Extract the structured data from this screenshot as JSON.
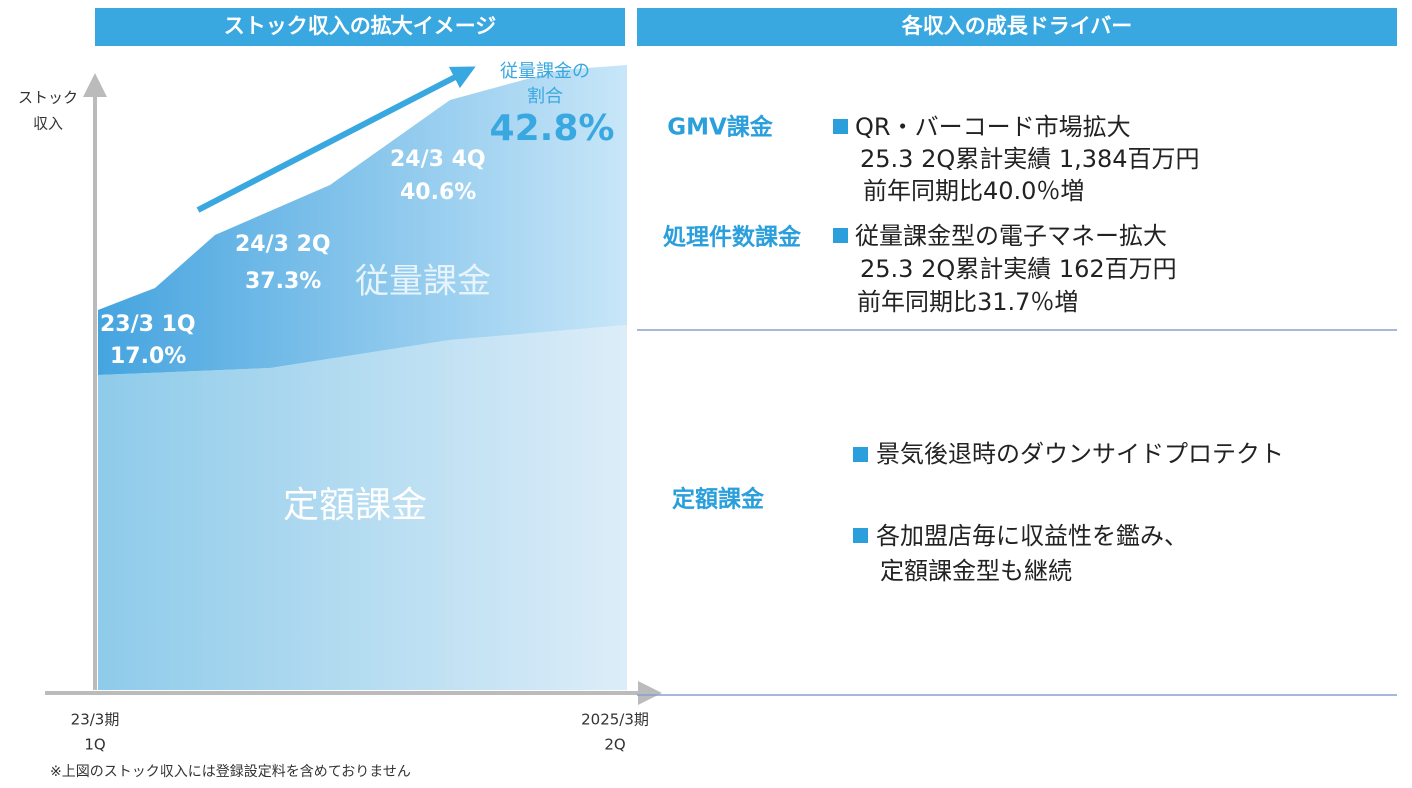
{
  "left": {
    "title": "ストック収入の拡大イメージ",
    "y_axis_label": [
      "ストック",
      "収入"
    ],
    "x_start": [
      "23/3期",
      "1Q"
    ],
    "x_end": [
      "2025/3期",
      "2Q"
    ],
    "points": [
      {
        "period": "23/3 1Q",
        "share": "17.0%"
      },
      {
        "period": "24/3 2Q",
        "share": "37.3%"
      },
      {
        "period": "24/3 4Q",
        "share": "40.6%"
      }
    ],
    "usage_label": "従量課金",
    "fixed_label": "定額課金",
    "callout": {
      "lines": [
        "従量課金の",
        "割合"
      ],
      "value": "42.8%"
    },
    "footnote": "※上図のストック収入には登録設定料を含めておりません"
  },
  "right": {
    "title": "各収入の成長ドライバー",
    "groups": [
      {
        "name": "GMV課金",
        "bullets": [
          {
            "lines": [
              "QR・バーコード市場拡大",
              "25.3 2Q累計実績 1,384百万円",
              "前年同期比40.0％増"
            ]
          }
        ]
      },
      {
        "name": "処理件数課金",
        "bullets": [
          {
            "lines": [
              "従量課金型の電子マネー拡大",
              "25.3 2Q累計実績 162百万円",
              "前年同期比31.7％増"
            ]
          }
        ]
      },
      {
        "name": "定額課金",
        "bullets": [
          {
            "lines": [
              "景気後退時のダウンサイドプロテクト"
            ]
          },
          {
            "lines": [
              "各加盟店毎に収益性を鑑み、",
              "定額課金型も継続"
            ]
          }
        ]
      }
    ]
  }
}
